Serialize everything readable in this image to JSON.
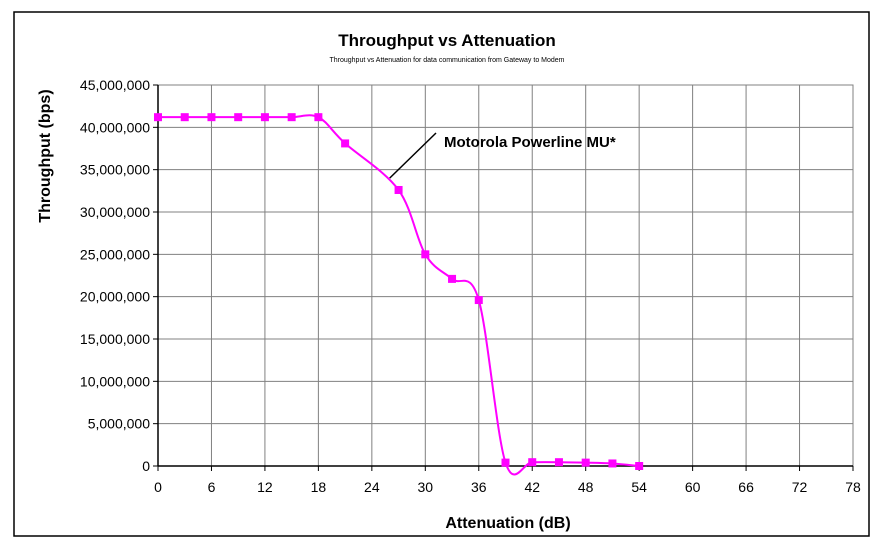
{
  "chart_data": {
    "type": "line",
    "title": "Throughput vs Attenuation",
    "subtitle": "Throughput vs Attenuation for data communication from Gateway to Modem",
    "xlabel": "Attenuation (dB)",
    "ylabel": "Throughput (bps)",
    "xlim": [
      0,
      78
    ],
    "ylim": [
      0,
      45000000
    ],
    "x_ticks": [
      0,
      6,
      12,
      18,
      24,
      30,
      36,
      42,
      48,
      54,
      60,
      66,
      72,
      78
    ],
    "x_tick_labels": [
      "0",
      "6",
      "12",
      "18",
      "24",
      "30",
      "36",
      "42",
      "48",
      "54",
      "60",
      "66",
      "72",
      "78"
    ],
    "y_ticks": [
      0,
      5000000,
      10000000,
      15000000,
      20000000,
      25000000,
      30000000,
      35000000,
      40000000,
      45000000
    ],
    "y_tick_labels": [
      "0",
      "5,000,000",
      "10,000,000",
      "15,000,000",
      "20,000,000",
      "25,000,000",
      "30,000,000",
      "35,000,000",
      "40,000,000",
      "45,000,000"
    ],
    "grid": true,
    "series": [
      {
        "name": "Motorola Powerline MU*",
        "color": "#ff00ff",
        "x": [
          0,
          3,
          6,
          9,
          12,
          15,
          18,
          21,
          27,
          30,
          33,
          36,
          39,
          42,
          45,
          48,
          51,
          54
        ],
        "y": [
          41200000,
          41200000,
          41200000,
          41200000,
          41200000,
          41200000,
          41200000,
          38100000,
          32600000,
          25000000,
          22100000,
          19600000,
          400000,
          450000,
          450000,
          400000,
          300000,
          0
        ]
      }
    ],
    "annotations": [
      {
        "text": "Motorola Powerline MU*",
        "points_to_x": 26,
        "points_to_y": 34000000
      }
    ]
  }
}
